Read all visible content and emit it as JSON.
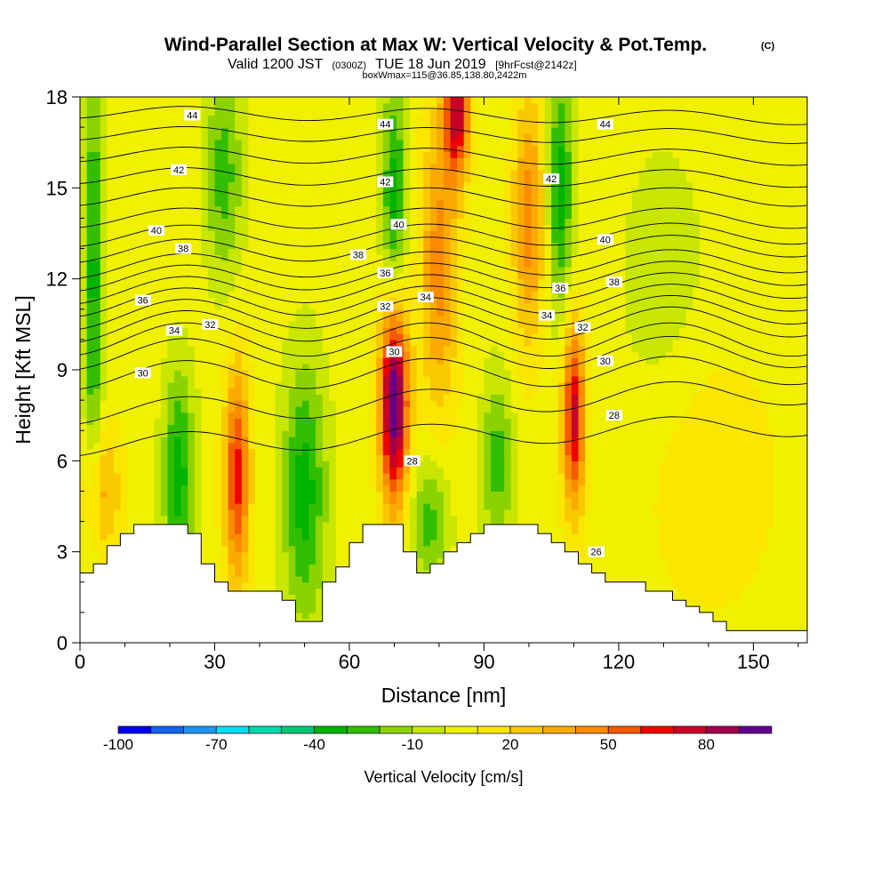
{
  "chart_data": {
    "type": "heatmap",
    "title": "Wind-Parallel Section at Max W: Vertical Velocity & Pot.Temp.",
    "title_mark": "(C)",
    "subtitle_lead": "Valid 1200 JST",
    "subtitle_utc": "(0300Z)",
    "subtitle_date": "TUE 18 Jun 2019",
    "subtitle_fcst": "[9hrFcst@2142z]",
    "subtitle_box": "boxWmax=115@36.85,138.80,2422m",
    "xlabel": "Distance [nm]",
    "ylabel": "Height [Kft MSL]",
    "xlim": [
      0,
      162
    ],
    "ylim": [
      0,
      18
    ],
    "x_ticks": [
      0,
      30,
      60,
      90,
      120,
      150
    ],
    "x_tick_labels": [
      "0",
      "30",
      "60",
      "90",
      "120",
      "150"
    ],
    "y_ticks": [
      0,
      3,
      6,
      9,
      12,
      15,
      18
    ],
    "y_tick_labels": [
      "0",
      "3",
      "6",
      "9",
      "12",
      "15",
      "18"
    ],
    "colorbar": {
      "title": "Vertical Velocity [cm/s]",
      "levels": [
        -100,
        -90,
        -80,
        -70,
        -60,
        -50,
        -40,
        -30,
        -20,
        -10,
        0,
        10,
        20,
        30,
        40,
        50,
        60,
        70,
        80,
        90,
        100
      ],
      "colors": [
        "#0000ee",
        "#1464f0",
        "#1e96f0",
        "#00dcf0",
        "#00d7aa",
        "#00c878",
        "#00b400",
        "#32be00",
        "#8cd200",
        "#c8e600",
        "#f0f000",
        "#fae600",
        "#fac800",
        "#faaa00",
        "#fa8c00",
        "#f55a00",
        "#f00000",
        "#c80028",
        "#a0004b",
        "#64008c"
      ],
      "tick_values": [
        -100,
        -70,
        -40,
        -10,
        20,
        50,
        80
      ],
      "tick_labels": [
        "-100",
        "-70",
        "-40",
        "-10",
        "20",
        "50",
        "80"
      ]
    },
    "velocity_features": [
      {
        "x": 3,
        "z": 12.0,
        "w": -40,
        "sx": 1.5,
        "sz": 5.0
      },
      {
        "x": 22,
        "z": 5.5,
        "w": -40,
        "sx": 2.5,
        "sz": 2.5
      },
      {
        "x": 35,
        "z": 5.5,
        "w": 60,
        "sx": 2.0,
        "sz": 2.5
      },
      {
        "x": 32,
        "z": 15.5,
        "w": -30,
        "sx": 3.0,
        "sz": 2.5
      },
      {
        "x": 50,
        "z": 5.0,
        "w": -40,
        "sx": 3.5,
        "sz": 3.0
      },
      {
        "x": 70,
        "z": 8.0,
        "w": 100,
        "sx": 2.2,
        "sz": 2.4
      },
      {
        "x": 70,
        "z": 14.5,
        "w": -40,
        "sx": 2.0,
        "sz": 3.0
      },
      {
        "x": 80,
        "z": 12.5,
        "w": 40,
        "sx": 3.0,
        "sz": 3.5
      },
      {
        "x": 84,
        "z": 17.5,
        "w": 70,
        "sx": 2.0,
        "sz": 1.5
      },
      {
        "x": 78,
        "z": 4.0,
        "w": -30,
        "sx": 3.0,
        "sz": 1.5
      },
      {
        "x": 93,
        "z": 6.0,
        "w": -30,
        "sx": 2.5,
        "sz": 2.0
      },
      {
        "x": 100,
        "z": 14.0,
        "w": 40,
        "sx": 2.5,
        "sz": 3.0
      },
      {
        "x": 110,
        "z": 7.5,
        "w": 70,
        "sx": 1.8,
        "sz": 2.2
      },
      {
        "x": 107,
        "z": 15.0,
        "w": -40,
        "sx": 2.0,
        "sz": 3.0
      },
      {
        "x": 5,
        "z": 5.0,
        "w": 30,
        "sx": 3.0,
        "sz": 1.5
      },
      {
        "x": 140,
        "z": 5.5,
        "w": 15,
        "sx": 10.0,
        "sz": 3.0
      },
      {
        "x": 130,
        "z": 11.5,
        "w": -10,
        "sx": 8.0,
        "sz": 4.0
      }
    ],
    "terrain_nm": [
      0,
      3,
      6,
      9,
      12,
      15,
      18,
      21,
      24,
      27,
      30,
      33,
      36,
      39,
      42,
      45,
      48,
      51,
      54,
      57,
      60,
      63,
      66,
      69,
      72,
      75,
      78,
      81,
      84,
      87,
      90,
      93,
      96,
      99,
      102,
      105,
      108,
      111,
      114,
      117,
      120,
      123,
      126,
      129,
      132,
      135,
      138,
      141,
      144,
      147,
      150,
      153,
      156,
      159,
      162
    ],
    "terrain_kft": [
      2.3,
      2.6,
      3.2,
      3.6,
      3.9,
      3.9,
      3.9,
      3.9,
      3.6,
      2.6,
      2.0,
      1.7,
      1.7,
      1.7,
      1.7,
      1.4,
      0.7,
      0.7,
      2.0,
      2.5,
      3.3,
      3.9,
      3.9,
      3.9,
      3.0,
      2.3,
      2.6,
      3.0,
      3.3,
      3.6,
      3.9,
      3.9,
      3.9,
      3.9,
      3.6,
      3.3,
      3.0,
      2.6,
      2.3,
      2.0,
      2.0,
      2.0,
      1.7,
      1.7,
      1.4,
      1.2,
      1.0,
      0.7,
      0.4,
      0.4,
      0.4,
      0.4,
      0.4,
      0.4,
      0.4
    ],
    "theta_contours": [
      {
        "value": 28,
        "zL": 6.5,
        "zR": 7.2
      },
      {
        "value": 29,
        "zL": 7.6,
        "zR": 8.3
      },
      {
        "value": 30,
        "zL": 8.8,
        "zR": 9.0
      },
      {
        "value": 31,
        "zL": 9.5,
        "zR": 9.6
      },
      {
        "value": 32,
        "zL": 10.0,
        "zR": 10.0
      },
      {
        "value": 33,
        "zL": 10.4,
        "zR": 10.6
      },
      {
        "value": 34,
        "zL": 10.8,
        "zR": 11.0
      },
      {
        "value": 35,
        "zL": 11.2,
        "zR": 11.4
      },
      {
        "value": 36,
        "zL": 11.6,
        "zR": 11.8
      },
      {
        "value": 37,
        "zL": 12.0,
        "zR": 12.2
      },
      {
        "value": 38,
        "zL": 12.4,
        "zR": 12.6
      },
      {
        "value": 39,
        "zL": 12.9,
        "zR": 13.1
      },
      {
        "value": 40,
        "zL": 13.4,
        "zR": 13.5
      },
      {
        "value": 41,
        "zL": 14.0,
        "zR": 14.0
      },
      {
        "value": 42,
        "zL": 14.7,
        "zR": 14.7
      },
      {
        "value": 43,
        "zL": 15.4,
        "zR": 15.3
      },
      {
        "value": 44,
        "zL": 16.1,
        "zR": 16.0
      },
      {
        "value": 45,
        "zL": 16.8,
        "zR": 16.7
      },
      {
        "value": 46,
        "zL": 17.5,
        "zR": 17.3
      }
    ],
    "contour_labels": [
      {
        "text": "44",
        "x": 25,
        "z": 17.4
      },
      {
        "text": "42",
        "x": 22,
        "z": 15.6
      },
      {
        "text": "40",
        "x": 17,
        "z": 13.6
      },
      {
        "text": "38",
        "x": 23,
        "z": 13.0
      },
      {
        "text": "36",
        "x": 14,
        "z": 11.3
      },
      {
        "text": "34",
        "x": 21,
        "z": 10.3
      },
      {
        "text": "32",
        "x": 29,
        "z": 10.5
      },
      {
        "text": "30",
        "x": 14,
        "z": 8.9
      },
      {
        "text": "44",
        "x": 68,
        "z": 17.1
      },
      {
        "text": "42",
        "x": 68,
        "z": 15.2
      },
      {
        "text": "40",
        "x": 71,
        "z": 13.8
      },
      {
        "text": "38",
        "x": 62,
        "z": 12.8
      },
      {
        "text": "36",
        "x": 68,
        "z": 12.2
      },
      {
        "text": "34",
        "x": 77,
        "z": 11.4
      },
      {
        "text": "32",
        "x": 68,
        "z": 11.1
      },
      {
        "text": "30",
        "x": 70,
        "z": 9.6
      },
      {
        "text": "28",
        "x": 74,
        "z": 6.0
      },
      {
        "text": "44",
        "x": 117,
        "z": 17.1
      },
      {
        "text": "42",
        "x": 105,
        "z": 15.3
      },
      {
        "text": "40",
        "x": 117,
        "z": 13.3
      },
      {
        "text": "38",
        "x": 119,
        "z": 11.9
      },
      {
        "text": "36",
        "x": 107,
        "z": 11.7
      },
      {
        "text": "34",
        "x": 104,
        "z": 10.8
      },
      {
        "text": "32",
        "x": 112,
        "z": 10.4
      },
      {
        "text": "30",
        "x": 117,
        "z": 9.3
      },
      {
        "text": "28",
        "x": 119,
        "z": 7.5
      },
      {
        "text": "26",
        "x": 115,
        "z": 3.0
      }
    ]
  }
}
